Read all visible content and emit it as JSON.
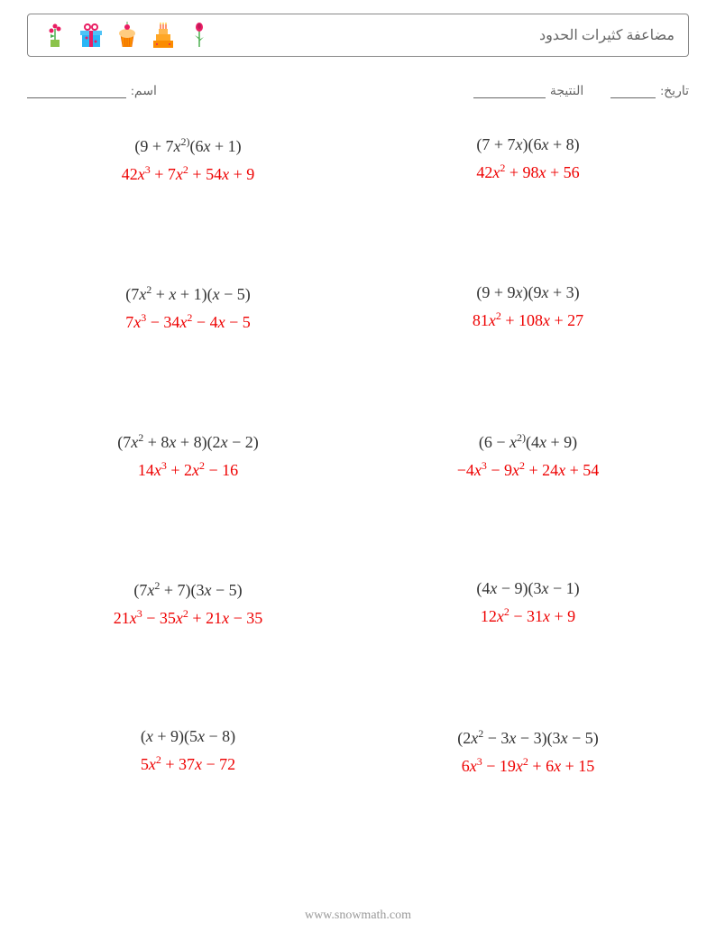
{
  "header": {
    "title": "مضاعفة كثيرات الحدود"
  },
  "info": {
    "name_label": "اسم:",
    "date_label": "تاريخ:",
    "score_label": "النتيجة"
  },
  "colors": {
    "question_color": "#333333",
    "answer_color": "#ee0000",
    "text_color": "#666666",
    "border_color": "#888888"
  },
  "typography": {
    "body_font": "Times New Roman",
    "question_fontsize": 18,
    "title_fontsize": 16
  },
  "problems": [
    {
      "question_html": "(9 + 7<span class='var'>x</span><sup>2)</sup>(6<span class='var'>x</span> + 1)",
      "answer_html": "42<span class='var'>x</span><sup>3</sup> + 7<span class='var'>x</span><sup>2</sup> + 54<span class='var'>x</span> + 9"
    },
    {
      "question_html": "(7 + 7<span class='var'>x</span>)(6<span class='var'>x</span> + 8)",
      "answer_html": "42<span class='var'>x</span><sup>2</sup> + 98<span class='var'>x</span> + 56"
    },
    {
      "question_html": "(7<span class='var'>x</span><sup>2</sup> + <span class='var'>x</span> + 1)(<span class='var'>x</span> − 5)",
      "answer_html": "7<span class='var'>x</span><sup>3</sup> − 34<span class='var'>x</span><sup>2</sup> − 4<span class='var'>x</span> − 5"
    },
    {
      "question_html": "(9 + 9<span class='var'>x</span>)(9<span class='var'>x</span> + 3)",
      "answer_html": "81<span class='var'>x</span><sup>2</sup> + 108<span class='var'>x</span> + 27"
    },
    {
      "question_html": "(7<span class='var'>x</span><sup>2</sup> + 8<span class='var'>x</span> + 8)(2<span class='var'>x</span> − 2)",
      "answer_html": "14<span class='var'>x</span><sup>3</sup> + 2<span class='var'>x</span><sup>2</sup> − 16"
    },
    {
      "question_html": "(6 − <span class='var'>x</span><sup>2)</sup>(4<span class='var'>x</span> + 9)",
      "answer_html": "−4<span class='var'>x</span><sup>3</sup> − 9<span class='var'>x</span><sup>2</sup> + 24<span class='var'>x</span> + 54"
    },
    {
      "question_html": "(7<span class='var'>x</span><sup>2</sup> + 7)(3<span class='var'>x</span> − 5)",
      "answer_html": "21<span class='var'>x</span><sup>3</sup> − 35<span class='var'>x</span><sup>2</sup> + 21<span class='var'>x</span> − 35"
    },
    {
      "question_html": "(4<span class='var'>x</span> − 9)(3<span class='var'>x</span> − 1)",
      "answer_html": "12<span class='var'>x</span><sup>2</sup> − 31<span class='var'>x</span> + 9"
    },
    {
      "question_html": "(<span class='var'>x</span> + 9)(5<span class='var'>x</span> − 8)",
      "answer_html": "5<span class='var'>x</span><sup>2</sup> + 37<span class='var'>x</span> − 72"
    },
    {
      "question_html": "(2<span class='var'>x</span><sup>2</sup> − 3<span class='var'>x</span> − 3)(3<span class='var'>x</span> − 5)",
      "answer_html": "6<span class='var'>x</span><sup>3</sup> − 19<span class='var'>x</span><sup>2</sup> + 6<span class='var'>x</span> + 15"
    }
  ],
  "footer": {
    "text": "www.snowmath.com"
  },
  "icons": [
    {
      "name": "flower-pot",
      "color": "#e91e63"
    },
    {
      "name": "gift",
      "color": "#29b6f6"
    },
    {
      "name": "cupcake",
      "color": "#ffa726"
    },
    {
      "name": "cake",
      "color": "#ffa726"
    },
    {
      "name": "rose",
      "color": "#e91e63"
    }
  ]
}
